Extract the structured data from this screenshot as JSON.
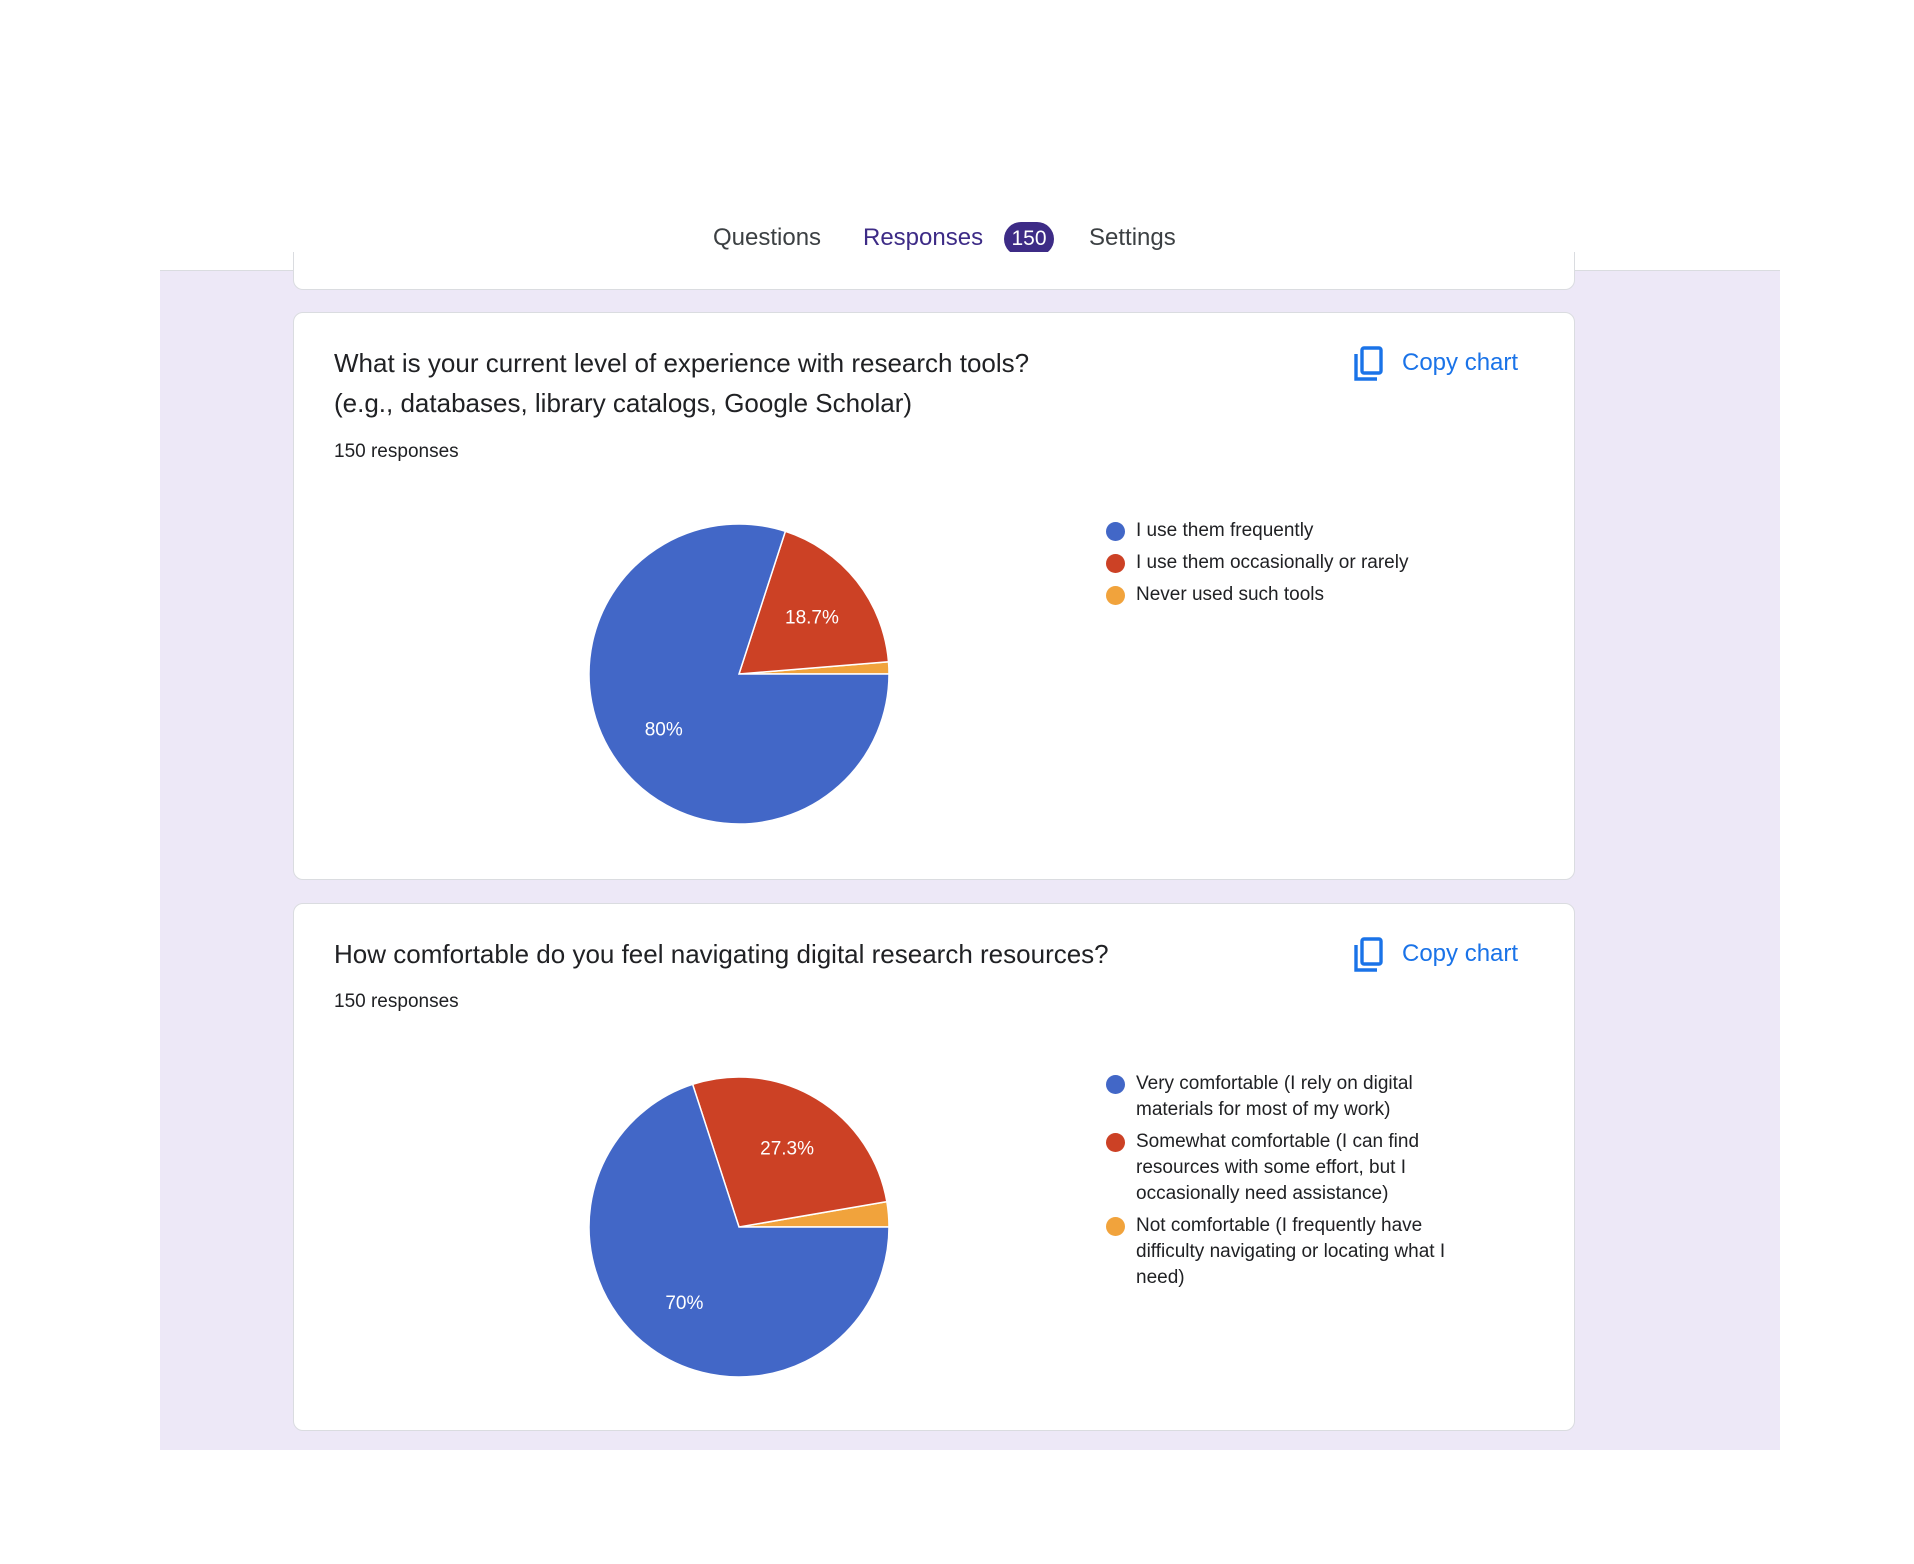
{
  "tabs": [
    {
      "label": "Questions"
    },
    {
      "label": "Responses",
      "count": "150"
    },
    {
      "label": "Settings"
    }
  ],
  "colors": {
    "accent": "#3d2b86",
    "link": "#1a73e8",
    "blue": "#4267c7",
    "red": "#cc4125",
    "orange": "#f1a33c"
  },
  "copy_label": "Copy chart",
  "cards": [
    {
      "title_line1": "What is your current level of experience with research tools?",
      "title_line2": "(e.g., databases, library catalogs, Google Scholar)",
      "responses": "150 responses",
      "legend": [
        "I use them frequently",
        "I use them occasionally or rarely",
        "Never used such tools"
      ]
    },
    {
      "title_line1": "How comfortable do you feel navigating digital research resources?",
      "responses": "150 responses",
      "legend": [
        "Very comfortable (I rely on digital materials for most of my work)",
        "Somewhat comfortable (I can find resources with some effort, but I occasionally need assistance)",
        "Not comfortable (I frequently have difficulty navigating or locating what I need)"
      ]
    }
  ],
  "chart_data": [
    {
      "type": "pie",
      "categories": [
        "I use them frequently",
        "I use them occasionally or rarely",
        "Never used such tools"
      ],
      "values": [
        80,
        18.7,
        1.3
      ],
      "labels": [
        "80%",
        "18.7%",
        ""
      ],
      "colors": [
        "#4267c7",
        "#cc4125",
        "#f1a33c"
      ],
      "legend": "right"
    },
    {
      "type": "pie",
      "categories": [
        "Very comfortable (I rely on digital materials for most of my work)",
        "Somewhat comfortable (I can find resources with some effort, but I occasionally need assistance)",
        "Not comfortable (I frequently have difficulty navigating or locating what I need)"
      ],
      "values": [
        70,
        27.3,
        2.7
      ],
      "labels": [
        "70%",
        "27.3%",
        ""
      ],
      "colors": [
        "#4267c7",
        "#cc4125",
        "#f1a33c"
      ],
      "legend": "right"
    }
  ]
}
